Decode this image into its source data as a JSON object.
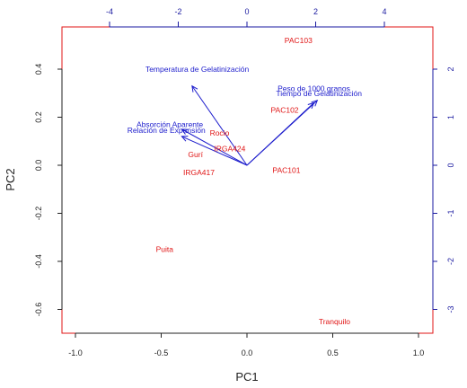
{
  "chart_data": {
    "type": "scatter",
    "xlabel": "PC1",
    "ylabel": "PC2",
    "xlim": [
      -1.0,
      1.0
    ],
    "ylim": [
      -0.6,
      0.4
    ],
    "x_ticks": [
      "-1.0",
      "-0.5",
      "0.0",
      "0.5",
      "1.0"
    ],
    "y_ticks": [
      "-0.6",
      "-0.4",
      "-0.2",
      "0.0",
      "0.2",
      "0.4"
    ],
    "top_ticks": [
      "-4",
      "-2",
      "0",
      "2",
      "4"
    ],
    "right_ticks": [
      "-3",
      "-2",
      "-1",
      "0",
      "1",
      "2"
    ],
    "observations": [
      {
        "label": "PAC103",
        "x": 0.3,
        "y": 0.52
      },
      {
        "label": "PAC102",
        "x": 0.22,
        "y": 0.23
      },
      {
        "label": "PAC101",
        "x": 0.23,
        "y": -0.02
      },
      {
        "label": "Rocio",
        "x": -0.16,
        "y": 0.135
      },
      {
        "label": "IRGA424",
        "x": -0.1,
        "y": 0.07
      },
      {
        "label": "Gurí",
        "x": -0.3,
        "y": 0.045
      },
      {
        "label": "IRGA417",
        "x": -0.28,
        "y": -0.03
      },
      {
        "label": "Puita",
        "x": -0.48,
        "y": -0.35
      },
      {
        "label": "Tranquilo",
        "x": 0.51,
        "y": -0.65
      }
    ],
    "loadings": [
      {
        "label": "Temperatura de Gelatinización",
        "x": -0.32,
        "y": 0.33
      },
      {
        "label": "Peso de 1000 granos",
        "x": 0.41,
        "y": 0.27
      },
      {
        "label": "Tiempo de Gelatinización",
        "x": 0.39,
        "y": 0.26
      },
      {
        "label": "Absorción Aparente",
        "x": -0.38,
        "y": 0.15
      },
      {
        "label": "Relación de Expansión",
        "x": -0.38,
        "y": 0.12
      }
    ],
    "colors": {
      "observations": "#e01515",
      "loadings": "#1c1ccc",
      "box": "#e01515"
    }
  }
}
